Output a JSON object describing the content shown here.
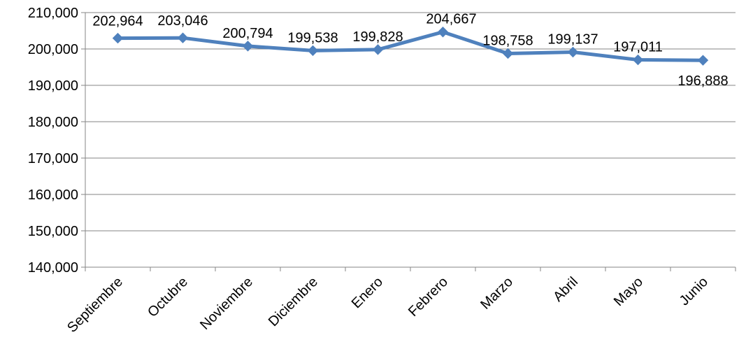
{
  "chart_data": {
    "type": "line",
    "title": "",
    "xlabel": "",
    "ylabel": "",
    "categories": [
      "Septiembre",
      "Octubre",
      "Noviembre",
      "Diciembre",
      "Enero",
      "Febrero",
      "Marzo",
      "Abril",
      "Mayo",
      "Junio"
    ],
    "series": [
      {
        "values": [
          202964,
          203046,
          200794,
          199538,
          199828,
          204667,
          198758,
          199137,
          197011,
          196888
        ],
        "data_labels": [
          "202,964",
          "203,046",
          "200,794",
          "199,538",
          "199,828",
          "204,667",
          "198,758",
          "199,137",
          "197,011",
          "196,888"
        ],
        "color": "#4F81BD",
        "marker": "diamond"
      }
    ],
    "ylim": [
      140000,
      210000
    ],
    "y_ticks": [
      140000,
      150000,
      160000,
      170000,
      180000,
      190000,
      200000,
      210000
    ],
    "y_tick_labels": [
      "140,000",
      "150,000",
      "160,000",
      "170,000",
      "180,000",
      "190,000",
      "200,000",
      "210,000"
    ],
    "grid": true,
    "legend": "none",
    "colors": {
      "series": "#4F81BD",
      "grid": "#868686",
      "axis": "#868686",
      "text": "#000000"
    }
  }
}
